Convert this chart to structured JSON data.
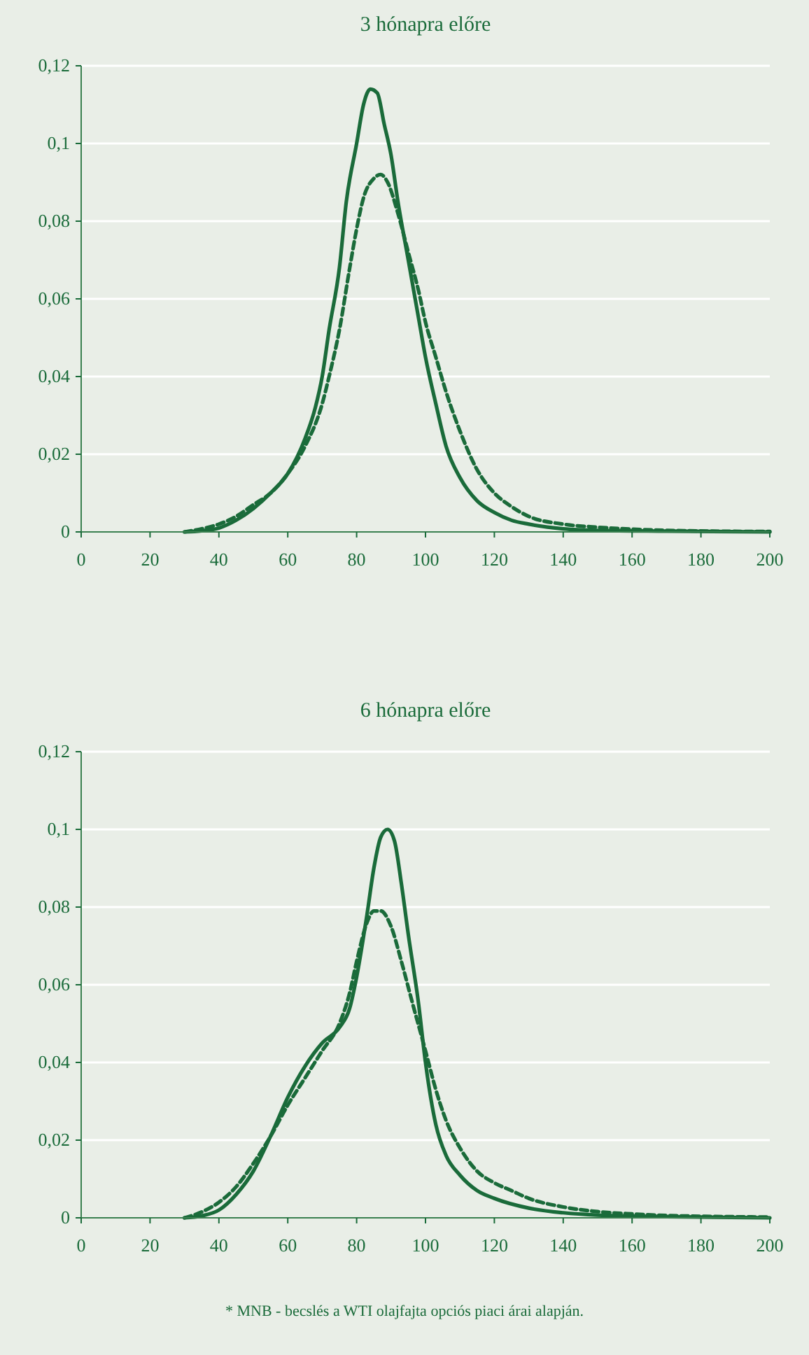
{
  "chart_data": [
    {
      "type": "line",
      "title": "3 hónapra előre",
      "xlim": [
        0,
        200
      ],
      "xticks": [
        0,
        20,
        40,
        60,
        80,
        100,
        120,
        140,
        160,
        180,
        200
      ],
      "ylim": [
        0,
        0.12
      ],
      "yticks": [
        {
          "value": 0,
          "label": "0"
        },
        {
          "value": 0.02,
          "label": "0,02"
        },
        {
          "value": 0.04,
          "label": "0,04"
        },
        {
          "value": 0.06,
          "label": "0,06"
        },
        {
          "value": 0.08,
          "label": "0,08"
        },
        {
          "value": 0.1,
          "label": "0,1"
        },
        {
          "value": 0.12,
          "label": "0,12"
        }
      ],
      "grid": "y",
      "series": [
        {
          "color": "#1a6b3a",
          "line_style": "solid",
          "x": [
            30,
            35,
            40,
            45,
            50,
            55,
            60,
            65,
            68,
            70,
            72,
            75,
            77,
            80,
            82,
            84,
            86,
            88,
            90,
            92,
            95,
            98,
            100,
            103,
            106,
            110,
            115,
            120,
            125,
            130,
            140,
            150,
            170,
            200
          ],
          "values": [
            0,
            0.0003,
            0.001,
            0.003,
            0.006,
            0.01,
            0.015,
            0.024,
            0.032,
            0.04,
            0.052,
            0.068,
            0.085,
            0.1,
            0.11,
            0.114,
            0.113,
            0.105,
            0.097,
            0.085,
            0.07,
            0.055,
            0.045,
            0.033,
            0.022,
            0.014,
            0.008,
            0.005,
            0.003,
            0.002,
            0.0008,
            0.0004,
            0.0002,
            0
          ]
        },
        {
          "color": "#1a6b3a",
          "line_style": "dashed",
          "x": [
            30,
            35,
            40,
            45,
            50,
            55,
            60,
            65,
            70,
            72,
            75,
            78,
            80,
            82,
            85,
            87,
            89,
            92,
            95,
            98,
            100,
            103,
            106,
            110,
            115,
            120,
            125,
            130,
            140,
            150,
            160,
            175,
            200
          ],
          "values": [
            0,
            0.0008,
            0.002,
            0.004,
            0.007,
            0.01,
            0.015,
            0.022,
            0.033,
            0.04,
            0.052,
            0.068,
            0.078,
            0.086,
            0.091,
            0.092,
            0.09,
            0.082,
            0.072,
            0.062,
            0.054,
            0.045,
            0.036,
            0.026,
            0.016,
            0.01,
            0.0065,
            0.004,
            0.002,
            0.0012,
            0.0007,
            0.0003,
            0.0001
          ]
        }
      ]
    },
    {
      "type": "line",
      "title": "6 hónapra előre",
      "xlim": [
        0,
        200
      ],
      "xticks": [
        0,
        20,
        40,
        60,
        80,
        100,
        120,
        140,
        160,
        180,
        200
      ],
      "ylim": [
        0,
        0.12
      ],
      "yticks": [
        {
          "value": 0,
          "label": "0"
        },
        {
          "value": 0.02,
          "label": "0,02"
        },
        {
          "value": 0.04,
          "label": "0,04"
        },
        {
          "value": 0.06,
          "label": "0,06"
        },
        {
          "value": 0.08,
          "label": "0,08"
        },
        {
          "value": 0.1,
          "label": "0,1"
        },
        {
          "value": 0.12,
          "label": "0,12"
        }
      ],
      "grid": "y",
      "annotations": [
        "* MNB - becslés a WTI olajfajta opciós piaci árai alapján."
      ],
      "series": [
        {
          "color": "#1a6b3a",
          "line_style": "solid",
          "x": [
            30,
            35,
            40,
            45,
            50,
            55,
            60,
            65,
            70,
            75,
            78,
            80,
            83,
            85,
            87,
            89,
            91,
            93,
            95,
            98,
            100,
            103,
            106,
            110,
            115,
            120,
            130,
            140,
            150,
            170,
            200
          ],
          "values": [
            0,
            0.0005,
            0.002,
            0.006,
            0.012,
            0.021,
            0.031,
            0.039,
            0.045,
            0.049,
            0.054,
            0.062,
            0.078,
            0.09,
            0.098,
            0.1,
            0.097,
            0.086,
            0.073,
            0.055,
            0.04,
            0.024,
            0.016,
            0.011,
            0.007,
            0.005,
            0.0025,
            0.0013,
            0.0007,
            0.0003,
            0
          ]
        },
        {
          "color": "#1a6b3a",
          "line_style": "dashed",
          "x": [
            30,
            35,
            40,
            45,
            50,
            55,
            60,
            65,
            70,
            75,
            78,
            80,
            83,
            85,
            87,
            90,
            93,
            96,
            100,
            103,
            106,
            110,
            115,
            120,
            125,
            130,
            140,
            150,
            160,
            170,
            200
          ],
          "values": [
            0,
            0.0015,
            0.004,
            0.008,
            0.014,
            0.021,
            0.029,
            0.036,
            0.043,
            0.05,
            0.058,
            0.066,
            0.076,
            0.079,
            0.079,
            0.075,
            0.066,
            0.056,
            0.043,
            0.033,
            0.025,
            0.018,
            0.012,
            0.009,
            0.007,
            0.005,
            0.0028,
            0.0016,
            0.001,
            0.0006,
            0.0002
          ]
        }
      ]
    }
  ]
}
